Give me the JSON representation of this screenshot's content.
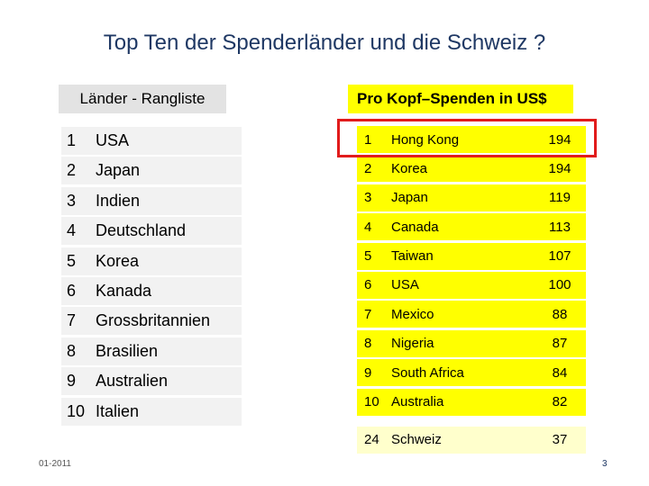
{
  "slide": {
    "title": "Top Ten der Spenderländer und die Schweiz ?",
    "left_header": "Länder - Rangliste",
    "right_header": "Pro Kopf–Spenden in  US$",
    "footer_date": "01-2011",
    "page_number": "3"
  },
  "left_ranking": [
    {
      "rank": "1",
      "country": "USA"
    },
    {
      "rank": "2",
      "country": "Japan"
    },
    {
      "rank": "3",
      "country": "Indien"
    },
    {
      "rank": "4",
      "country": "Deutschland"
    },
    {
      "rank": "5",
      "country": "Korea"
    },
    {
      "rank": "6",
      "country": "Kanada"
    },
    {
      "rank": "7",
      "country": "Grossbritannien"
    },
    {
      "rank": "8",
      "country": "Brasilien"
    },
    {
      "rank": "9",
      "country": "Australien"
    },
    {
      "rank": "10",
      "country": "Italien"
    }
  ],
  "right_ranking": [
    {
      "rank": "1",
      "country": "Hong Kong",
      "amount": "194"
    },
    {
      "rank": "2",
      "country": "Korea",
      "amount": "194"
    },
    {
      "rank": "3",
      "country": "Japan",
      "amount": "119"
    },
    {
      "rank": "4",
      "country": "Canada",
      "amount": "113"
    },
    {
      "rank": "5",
      "country": "Taiwan",
      "amount": "107"
    },
    {
      "rank": "6",
      "country": "USA",
      "amount": "100"
    },
    {
      "rank": "7",
      "country": "Mexico",
      "amount": "88"
    },
    {
      "rank": "8",
      "country": "Nigeria",
      "amount": "87"
    },
    {
      "rank": "9",
      "country": "South Africa",
      "amount": "84"
    },
    {
      "rank": "10",
      "country": "Australia",
      "amount": "82"
    }
  ],
  "switzerland": {
    "rank": "24",
    "country": "Schweiz",
    "amount": "37"
  },
  "colors": {
    "title": "#1f3864",
    "highlight_border": "#e11b1b",
    "table_fill": "#ffff00"
  }
}
